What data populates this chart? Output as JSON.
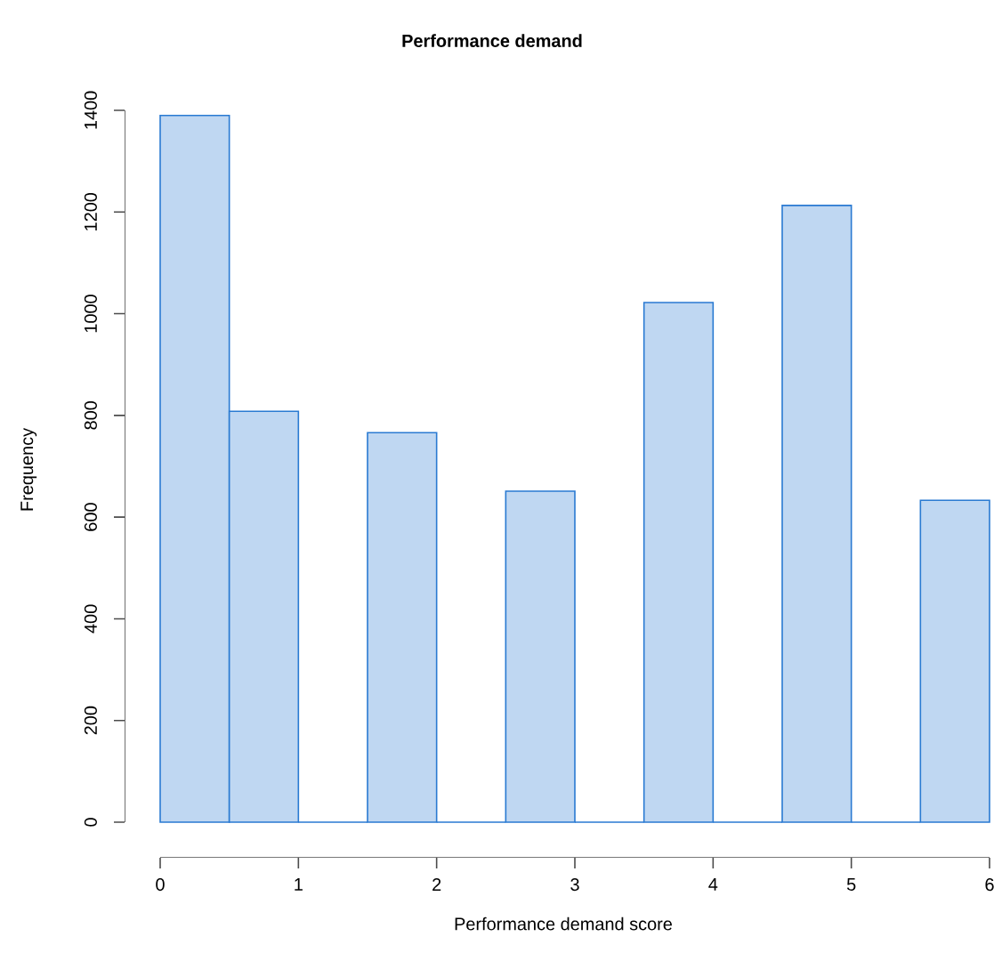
{
  "chart_data": {
    "type": "histogram",
    "title": "Performance demand",
    "xlabel": "Performance demand score",
    "ylabel": "Frequency",
    "bins": [
      0,
      0.5,
      1,
      1.5,
      2,
      2.5,
      3,
      3.5,
      4,
      4.5,
      5,
      5.5,
      6
    ],
    "values": [
      1390,
      808,
      0,
      766,
      0,
      651,
      0,
      1022,
      0,
      1213,
      0,
      633
    ],
    "color": "#2a7ad2",
    "xlim": [
      0,
      6
    ],
    "ylim": [
      0,
      1400
    ],
    "xticks": [
      0,
      1,
      2,
      3,
      4,
      5,
      6
    ],
    "yticks": [
      0,
      200,
      400,
      600,
      800,
      1000,
      1200,
      1400
    ],
    "grid": false
  }
}
